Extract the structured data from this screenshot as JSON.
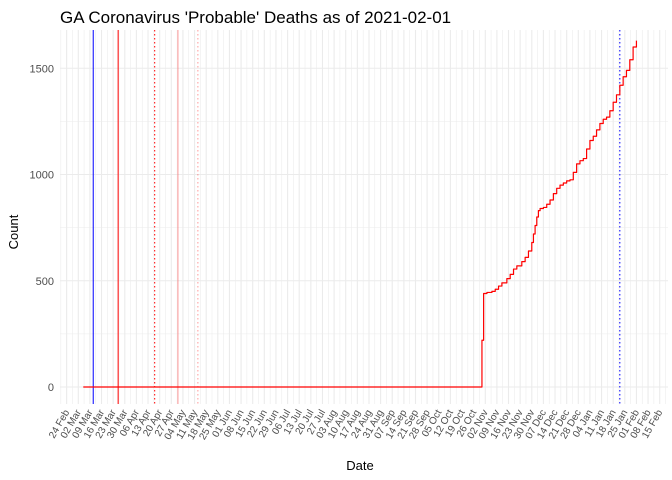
{
  "chart_data": {
    "type": "line",
    "title": "GA Coronavirus 'Probable' Deaths as of 2021-02-01",
    "xlabel": "Date",
    "ylabel": "Count",
    "x_axis": "date",
    "xlim": [
      "2020-02-20",
      "2021-02-20"
    ],
    "ylim": [
      -80,
      1680
    ],
    "grid": true,
    "y_ticks": [
      0,
      500,
      1000,
      1500
    ],
    "x_ticks": [
      {
        "date": "2020-02-24",
        "label": "24 Feb"
      },
      {
        "date": "2020-03-02",
        "label": "02 Mar"
      },
      {
        "date": "2020-03-09",
        "label": "09 Mar"
      },
      {
        "date": "2020-03-16",
        "label": "16 Mar"
      },
      {
        "date": "2020-03-23",
        "label": "23 Mar"
      },
      {
        "date": "2020-03-30",
        "label": "30 Mar"
      },
      {
        "date": "2020-04-06",
        "label": "06 Apr"
      },
      {
        "date": "2020-04-13",
        "label": "13 Apr"
      },
      {
        "date": "2020-04-20",
        "label": "20 Apr"
      },
      {
        "date": "2020-04-27",
        "label": "27 Apr"
      },
      {
        "date": "2020-05-04",
        "label": "04 May"
      },
      {
        "date": "2020-05-11",
        "label": "11 May"
      },
      {
        "date": "2020-05-18",
        "label": "18 May"
      },
      {
        "date": "2020-05-25",
        "label": "25 May"
      },
      {
        "date": "2020-06-01",
        "label": "01 Jun"
      },
      {
        "date": "2020-06-08",
        "label": "08 Jun"
      },
      {
        "date": "2020-06-15",
        "label": "15 Jun"
      },
      {
        "date": "2020-06-22",
        "label": "22 Jun"
      },
      {
        "date": "2020-06-29",
        "label": "29 Jun"
      },
      {
        "date": "2020-07-06",
        "label": "06 Jul"
      },
      {
        "date": "2020-07-13",
        "label": "13 Jul"
      },
      {
        "date": "2020-07-20",
        "label": "20 Jul"
      },
      {
        "date": "2020-07-27",
        "label": "27 Jul"
      },
      {
        "date": "2020-08-03",
        "label": "03 Aug"
      },
      {
        "date": "2020-08-10",
        "label": "10 Aug"
      },
      {
        "date": "2020-08-17",
        "label": "17 Aug"
      },
      {
        "date": "2020-08-24",
        "label": "24 Aug"
      },
      {
        "date": "2020-08-31",
        "label": "31 Aug"
      },
      {
        "date": "2020-09-07",
        "label": "07 Sep"
      },
      {
        "date": "2020-09-14",
        "label": "14 Sep"
      },
      {
        "date": "2020-09-21",
        "label": "21 Sep"
      },
      {
        "date": "2020-09-28",
        "label": "28 Sep"
      },
      {
        "date": "2020-10-05",
        "label": "05 Oct"
      },
      {
        "date": "2020-10-12",
        "label": "12 Oct"
      },
      {
        "date": "2020-10-19",
        "label": "19 Oct"
      },
      {
        "date": "2020-10-26",
        "label": "26 Oct"
      },
      {
        "date": "2020-11-02",
        "label": "02 Nov"
      },
      {
        "date": "2020-11-09",
        "label": "09 Nov"
      },
      {
        "date": "2020-11-16",
        "label": "16 Nov"
      },
      {
        "date": "2020-11-23",
        "label": "23 Nov"
      },
      {
        "date": "2020-11-30",
        "label": "30 Nov"
      },
      {
        "date": "2020-12-07",
        "label": "07 Dec"
      },
      {
        "date": "2020-12-14",
        "label": "14 Dec"
      },
      {
        "date": "2020-12-21",
        "label": "21 Dec"
      },
      {
        "date": "2020-12-28",
        "label": "28 Dec"
      },
      {
        "date": "2021-01-04",
        "label": "04 Jan"
      },
      {
        "date": "2021-01-11",
        "label": "11 Jan"
      },
      {
        "date": "2021-01-18",
        "label": "18 Jan"
      },
      {
        "date": "2021-01-25",
        "label": "25 Jan"
      },
      {
        "date": "2021-02-01",
        "label": "01 Feb"
      },
      {
        "date": "2021-02-08",
        "label": "08 Feb"
      },
      {
        "date": "2021-02-15",
        "label": "15 Feb"
      }
    ],
    "vertical_lines": [
      {
        "date": "2020-03-11",
        "color": "#0000ff",
        "style": "solid"
      },
      {
        "date": "2020-03-26",
        "color": "#ff0000",
        "style": "solid"
      },
      {
        "date": "2020-04-17",
        "color": "#ff0000",
        "style": "dotted"
      },
      {
        "date": "2020-05-01",
        "color": "#ff0000",
        "style": "solid",
        "opacity": 0.4
      },
      {
        "date": "2020-05-13",
        "color": "#ff0000",
        "style": "dotted",
        "opacity": 0.4
      },
      {
        "date": "2021-01-22",
        "color": "#0000ff",
        "style": "dotted"
      }
    ],
    "series": [
      {
        "color": "#ff0000",
        "step": true,
        "x": [
          "2020-03-05",
          "2020-10-30",
          "2020-10-31",
          "2020-11-01",
          "2020-11-03",
          "2020-11-06",
          "2020-11-08",
          "2020-11-10",
          "2020-11-12",
          "2020-11-15",
          "2020-11-17",
          "2020-11-19",
          "2020-11-21",
          "2020-11-24",
          "2020-11-26",
          "2020-11-28",
          "2020-11-30",
          "2020-12-01",
          "2020-12-02",
          "2020-12-03",
          "2020-12-04",
          "2020-12-05",
          "2020-12-07",
          "2020-12-09",
          "2020-12-11",
          "2020-12-13",
          "2020-12-15",
          "2020-12-17",
          "2020-12-19",
          "2020-12-21",
          "2020-12-23",
          "2020-12-25",
          "2020-12-27",
          "2020-12-29",
          "2020-12-31",
          "2021-01-02",
          "2021-01-04",
          "2021-01-06",
          "2021-01-08",
          "2021-01-10",
          "2021-01-12",
          "2021-01-14",
          "2021-01-16",
          "2021-01-18",
          "2021-01-20",
          "2021-01-22",
          "2021-01-24",
          "2021-01-26",
          "2021-01-28",
          "2021-01-30",
          "2021-02-01"
        ],
        "values": [
          0,
          0,
          220,
          440,
          445,
          450,
          460,
          475,
          490,
          510,
          530,
          555,
          570,
          590,
          610,
          640,
          680,
          720,
          760,
          800,
          830,
          840,
          845,
          860,
          880,
          910,
          935,
          950,
          960,
          970,
          975,
          1010,
          1050,
          1065,
          1075,
          1120,
          1160,
          1180,
          1210,
          1240,
          1260,
          1270,
          1300,
          1340,
          1375,
          1420,
          1460,
          1490,
          1540,
          1600,
          1630
        ]
      }
    ]
  }
}
